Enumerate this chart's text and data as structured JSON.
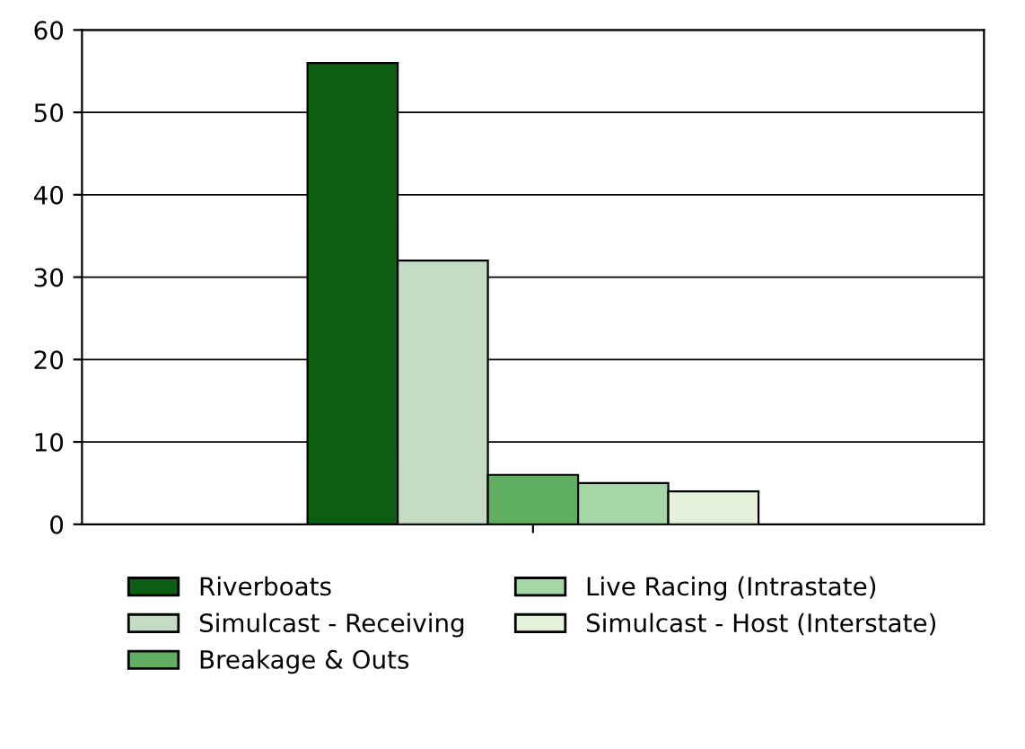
{
  "chart_data": {
    "type": "bar",
    "categories": [
      null
    ],
    "series": [
      {
        "name": "Riverboats",
        "color": "#0b5e12",
        "values": [
          56
        ]
      },
      {
        "name": "Simulcast - Receiving",
        "color": "#c4dcc4",
        "values": [
          32
        ]
      },
      {
        "name": "Breakage & Outs",
        "color": "#5fae62",
        "values": [
          6
        ]
      },
      {
        "name": "Live Racing (Intrastate)",
        "color": "#a6d6a6",
        "values": [
          5
        ]
      },
      {
        "name": "Simulcast - Host (Interstate)",
        "color": "#e4f2dc",
        "values": [
          4
        ]
      }
    ],
    "ylim": [
      0,
      60
    ],
    "yticks": [
      0,
      10,
      20,
      30,
      40,
      50,
      60
    ],
    "grid": "y",
    "legend": "bottom"
  }
}
